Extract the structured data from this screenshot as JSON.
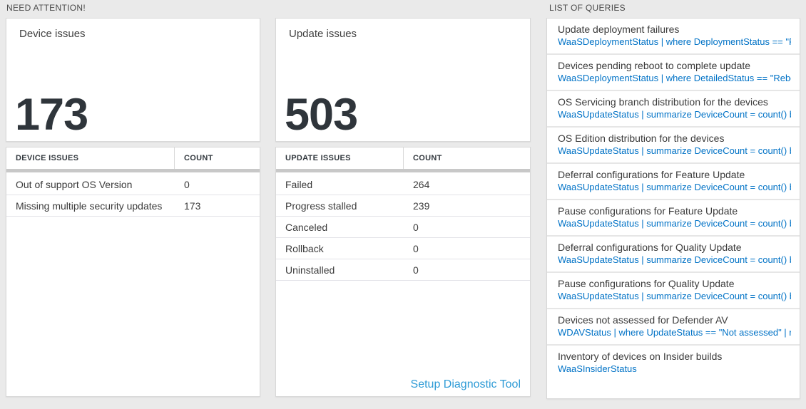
{
  "sections": {
    "need_attention_label": "NEED ATTENTION!",
    "queries_label": "LIST OF QUERIES"
  },
  "device_tile": {
    "title": "Device issues",
    "count": "173"
  },
  "update_tile": {
    "title": "Update issues",
    "count": "503"
  },
  "device_table": {
    "headers": [
      "DEVICE ISSUES",
      "COUNT"
    ],
    "rows": [
      {
        "label": "Out of support OS Version",
        "count": "0"
      },
      {
        "label": "Missing multiple security updates",
        "count": "173"
      }
    ]
  },
  "update_table": {
    "headers": [
      "UPDATE ISSUES",
      "COUNT"
    ],
    "rows": [
      {
        "label": "Failed",
        "count": "264"
      },
      {
        "label": "Progress stalled",
        "count": "239"
      },
      {
        "label": "Canceled",
        "count": "0"
      },
      {
        "label": "Rollback",
        "count": "0"
      },
      {
        "label": "Uninstalled",
        "count": "0"
      }
    ],
    "footer_link": "Setup Diagnostic Tool"
  },
  "query_list": {
    "items": [
      {
        "title": "Update deployment failures",
        "query": "WaaSDeploymentStatus | where DeploymentStatus == \"Failed\" |..."
      },
      {
        "title": "Devices pending reboot to complete update",
        "query": "WaaSDeploymentStatus | where DetailedStatus == \"Reboot pend..."
      },
      {
        "title": "OS Servicing branch distribution for the devices",
        "query": "WaaSUpdateStatus | summarize DeviceCount = count() by OSSer..."
      },
      {
        "title": "OS Edition distribution for the devices",
        "query": "WaaSUpdateStatus | summarize DeviceCount = count() by OSEdit..."
      },
      {
        "title": "Deferral configurations for Feature Update",
        "query": "WaaSUpdateStatus | summarize DeviceCount = count() by Featur..."
      },
      {
        "title": "Pause configurations for Feature Update",
        "query": "WaaSUpdateStatus | summarize DeviceCount = count() by Featur..."
      },
      {
        "title": "Deferral configurations for Quality Update",
        "query": "WaaSUpdateStatus | summarize DeviceCount = count() by Qualit..."
      },
      {
        "title": "Pause configurations for Quality Update",
        "query": "WaaSUpdateStatus | summarize DeviceCount = count() by Qualit..."
      },
      {
        "title": "Devices not assessed for Defender AV",
        "query": "WDAVStatus | where UpdateStatus == \"Not assessed\" | render ta..."
      },
      {
        "title": "Inventory of devices on Insider builds",
        "query": "WaaSInsiderStatus"
      }
    ]
  },
  "colors": {
    "page_bg": "#eaeaea",
    "query_link_blue": "#0072c6",
    "diagnostic_link_blue": "#2e9bd6",
    "big_number": "#2f353b",
    "thick_bar_gray": "#c8c8c8"
  }
}
